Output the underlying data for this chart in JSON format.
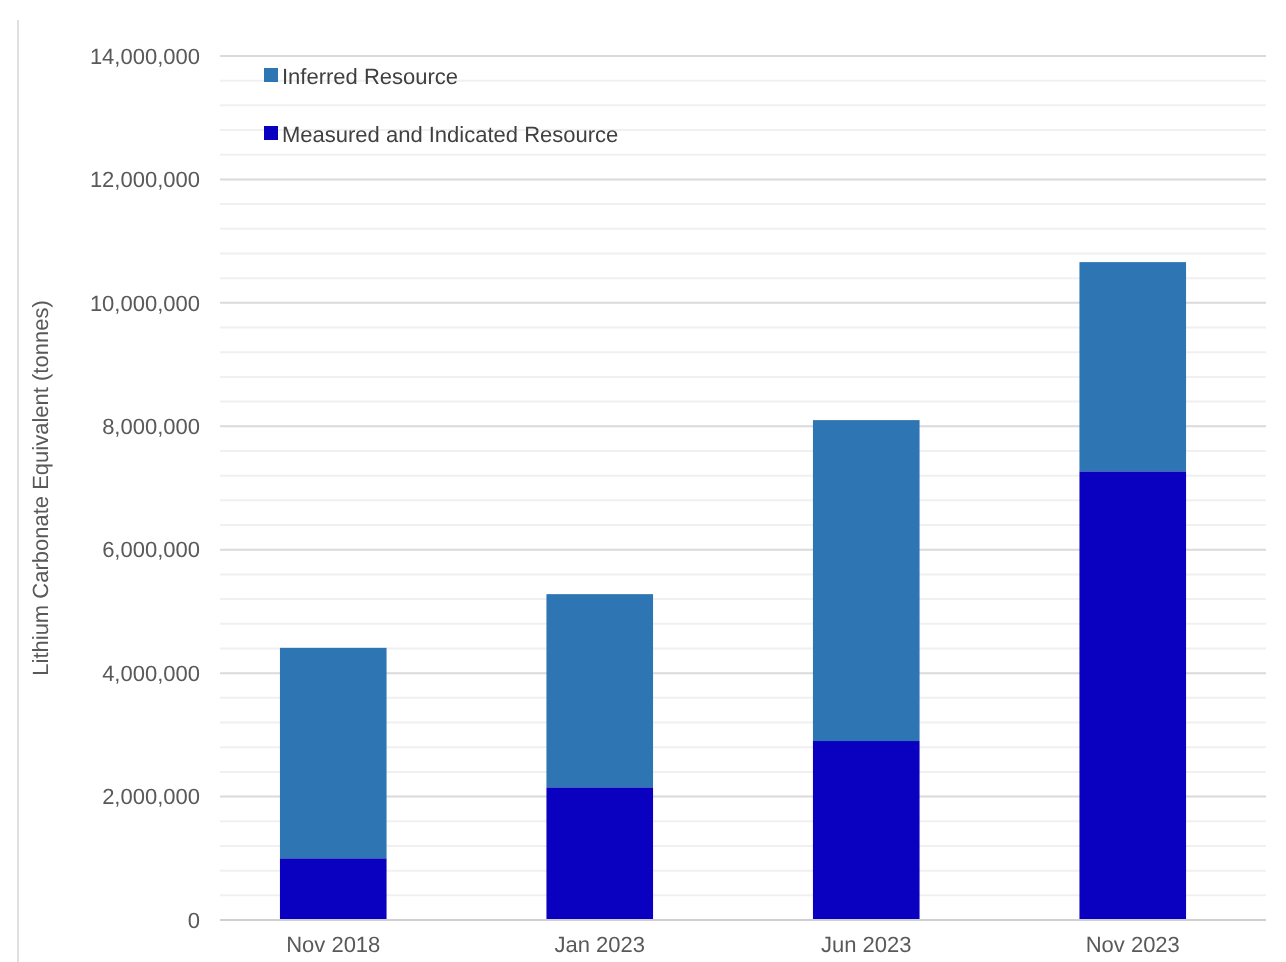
{
  "chart_data": {
    "type": "bar",
    "stacked": true,
    "ylabel": "Lithium Carbonate Equivalent (tonnes)",
    "categories": [
      "Nov 2018",
      "Jan 2023",
      "Jun 2023",
      "Nov 2023"
    ],
    "series": [
      {
        "name": "Measured and Indicated Resource",
        "color": "#0a00c0",
        "values": [
          1000000,
          2150000,
          2900000,
          7270000
        ]
      },
      {
        "name": "Inferred Resource",
        "color": "#2e75b4",
        "values": [
          3410000,
          3130000,
          5200000,
          3390000
        ]
      }
    ],
    "ylim": [
      0,
      14000000
    ],
    "yticks": [
      0,
      {
        "value": 400000,
        "label": null
      },
      {
        "value": 800000,
        "label": null
      },
      {
        "value": 1200000,
        "label": null
      },
      {
        "value": 1600000,
        "label": null
      },
      "2,000,000",
      {
        "value": 2400000,
        "label": null
      },
      {
        "value": 2800000,
        "label": null
      },
      {
        "value": 3200000,
        "label": null
      },
      {
        "value": 3600000,
        "label": null
      },
      {
        "value": 4000000,
        "label": "4,000,000"
      },
      {
        "value": 4400000,
        "label": null
      },
      {
        "value": 4800000,
        "label": null
      },
      {
        "value": 5200000,
        "label": null
      },
      {
        "value": 5600000,
        "label": null
      },
      {
        "value": 6000000,
        "label": "6,000,000"
      },
      {
        "value": 6400000,
        "label": null
      },
      {
        "value": 6800000,
        "label": null
      },
      {
        "value": 7200000,
        "label": null
      },
      {
        "value": 7600000,
        "label": null
      },
      {
        "value": 8000000,
        "label": "8,000,000"
      },
      {
        "value": 8400000,
        "label": null
      },
      {
        "value": 8800000,
        "label": null
      },
      {
        "value": 9200000,
        "label": null
      },
      {
        "value": 9600000,
        "label": null
      },
      {
        "value": 10000000,
        "label": "10,000,000"
      },
      {
        "value": 10400000,
        "label": null
      },
      {
        "value": 10800000,
        "label": null
      },
      {
        "value": 11200000,
        "label": null
      },
      {
        "value": 11600000,
        "label": null
      },
      {
        "value": 12000000,
        "label": "12,000,000"
      },
      {
        "value": 12400000,
        "label": null
      },
      {
        "value": 12800000,
        "label": null
      },
      {
        "value": 13200000,
        "label": null
      },
      {
        "value": 13600000,
        "label": null
      },
      {
        "value": 14000000,
        "label": "14,000,000"
      }
    ],
    "grid": "y",
    "legend": "top left"
  }
}
